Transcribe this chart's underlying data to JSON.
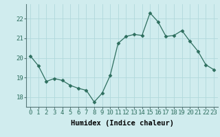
{
  "x": [
    0,
    1,
    2,
    3,
    4,
    5,
    6,
    7,
    8,
    9,
    10,
    11,
    12,
    13,
    14,
    15,
    16,
    17,
    18,
    19,
    20,
    21,
    22,
    23
  ],
  "y": [
    20.1,
    19.6,
    18.8,
    18.95,
    18.85,
    18.6,
    18.45,
    18.35,
    17.75,
    18.2,
    19.1,
    20.75,
    21.1,
    21.2,
    21.15,
    22.3,
    21.85,
    21.1,
    21.15,
    21.4,
    20.85,
    20.35,
    19.65,
    19.4
  ],
  "line_color": "#2d6e5e",
  "marker": "D",
  "marker_size": 2.5,
  "bg_color": "#d0ecee",
  "grid_color": "#b0d8dc",
  "xlabel": "Humidex (Indice chaleur)",
  "ylim": [
    17.5,
    22.75
  ],
  "xlim": [
    -0.5,
    23.5
  ],
  "yticks": [
    18,
    19,
    20,
    21,
    22
  ],
  "xticks": [
    0,
    1,
    2,
    3,
    4,
    5,
    6,
    7,
    8,
    9,
    10,
    11,
    12,
    13,
    14,
    15,
    16,
    17,
    18,
    19,
    20,
    21,
    22,
    23
  ],
  "xlabel_fontsize": 7.5,
  "tick_fontsize": 6.5,
  "fig_width": 3.2,
  "fig_height": 2.0,
  "dpi": 100
}
